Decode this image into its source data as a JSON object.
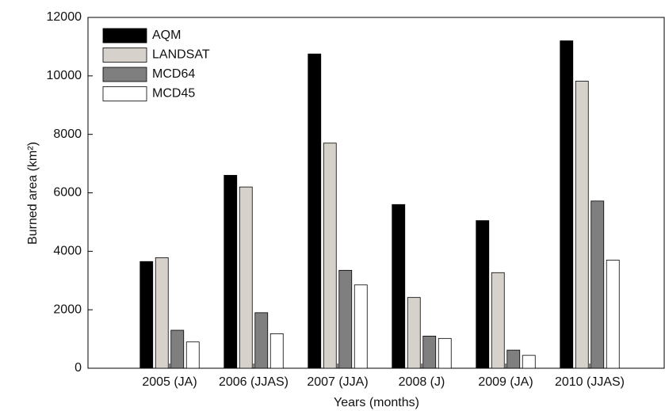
{
  "chart_data": {
    "type": "bar",
    "xlabel": "Years (months)",
    "ylabel": "Burned area (km²)",
    "categories": [
      "2005 (JA)",
      "2006 (JJAS)",
      "2007 (JJA)",
      "2008 (J)",
      "2009 (JA)",
      "2010 (JJAS)"
    ],
    "series": [
      {
        "name": "AQM",
        "color": "#000000",
        "values": [
          3650,
          6600,
          10750,
          5600,
          5050,
          11200
        ]
      },
      {
        "name": "LANDSAT",
        "color": "#d6d2cb",
        "values": [
          3780,
          6200,
          7700,
          2420,
          3270,
          9820
        ]
      },
      {
        "name": "MCD64",
        "color": "#7f7f7f",
        "values": [
          1300,
          1900,
          3350,
          1100,
          620,
          5720
        ]
      },
      {
        "name": "MCD45",
        "color": "#ffffff",
        "values": [
          900,
          1180,
          2850,
          1020,
          440,
          3700
        ]
      }
    ],
    "ylim": [
      0,
      12000
    ],
    "yticks": [
      0,
      2000,
      4000,
      6000,
      8000,
      10000,
      12000
    ],
    "legend": "upper-left"
  }
}
